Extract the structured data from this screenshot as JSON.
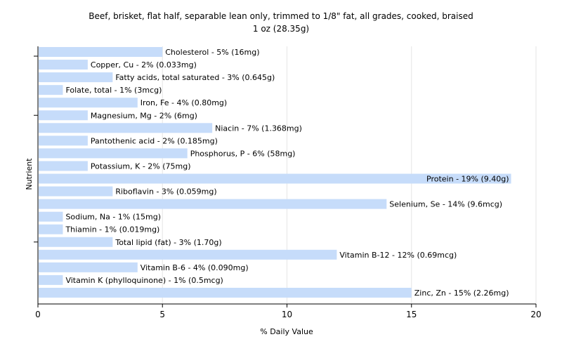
{
  "chart_data": {
    "type": "bar",
    "orientation": "horizontal",
    "title": "Beef, brisket, flat half, separable lean only, trimmed to 1/8\" fat, all grades, cooked, braised",
    "subtitle": "1 oz (28.35g)",
    "xlabel": "% Daily Value",
    "ylabel": "Nutrient",
    "xlim": [
      0,
      20
    ],
    "xticks": [
      0,
      5,
      10,
      15,
      20
    ],
    "grid": true,
    "bar_color": "#c6dcfa",
    "categories": [
      "Cholesterol",
      "Copper, Cu",
      "Fatty acids, total saturated",
      "Folate, total",
      "Iron, Fe",
      "Magnesium, Mg",
      "Niacin",
      "Pantothenic acid",
      "Phosphorus, P",
      "Potassium, K",
      "Protein",
      "Riboflavin",
      "Selenium, Se",
      "Sodium, Na",
      "Thiamin",
      "Total lipid (fat)",
      "Vitamin B-12",
      "Vitamin B-6",
      "Vitamin K (phylloquinone)",
      "Zinc, Zn"
    ],
    "values": [
      5,
      2,
      3,
      1,
      4,
      2,
      7,
      2,
      6,
      2,
      19,
      3,
      14,
      1,
      1,
      3,
      12,
      4,
      1,
      15
    ],
    "labels": [
      "Cholesterol - 5% (16mg)",
      "Copper, Cu - 2% (0.033mg)",
      "Fatty acids, total saturated - 3% (0.645g)",
      "Folate, total - 1% (3mcg)",
      "Iron, Fe - 4% (0.80mg)",
      "Magnesium, Mg - 2% (6mg)",
      "Niacin - 7% (1.368mg)",
      "Pantothenic acid - 2% (0.185mg)",
      "Phosphorus, P - 6% (58mg)",
      "Potassium, K - 2% (75mg)",
      "Protein - 19% (9.40g)",
      "Riboflavin - 3% (0.059mg)",
      "Selenium, Se - 14% (9.6mcg)",
      "Sodium, Na - 1% (15mg)",
      "Thiamin - 1% (0.019mg)",
      "Total lipid (fat) - 3% (1.70g)",
      "Vitamin B-12 - 12% (0.69mcg)",
      "Vitamin B-6 - 4% (0.090mg)",
      "Vitamin K (phylloquinone) - 1% (0.5mcg)",
      "Zinc, Zn - 15% (2.26mg)"
    ]
  }
}
